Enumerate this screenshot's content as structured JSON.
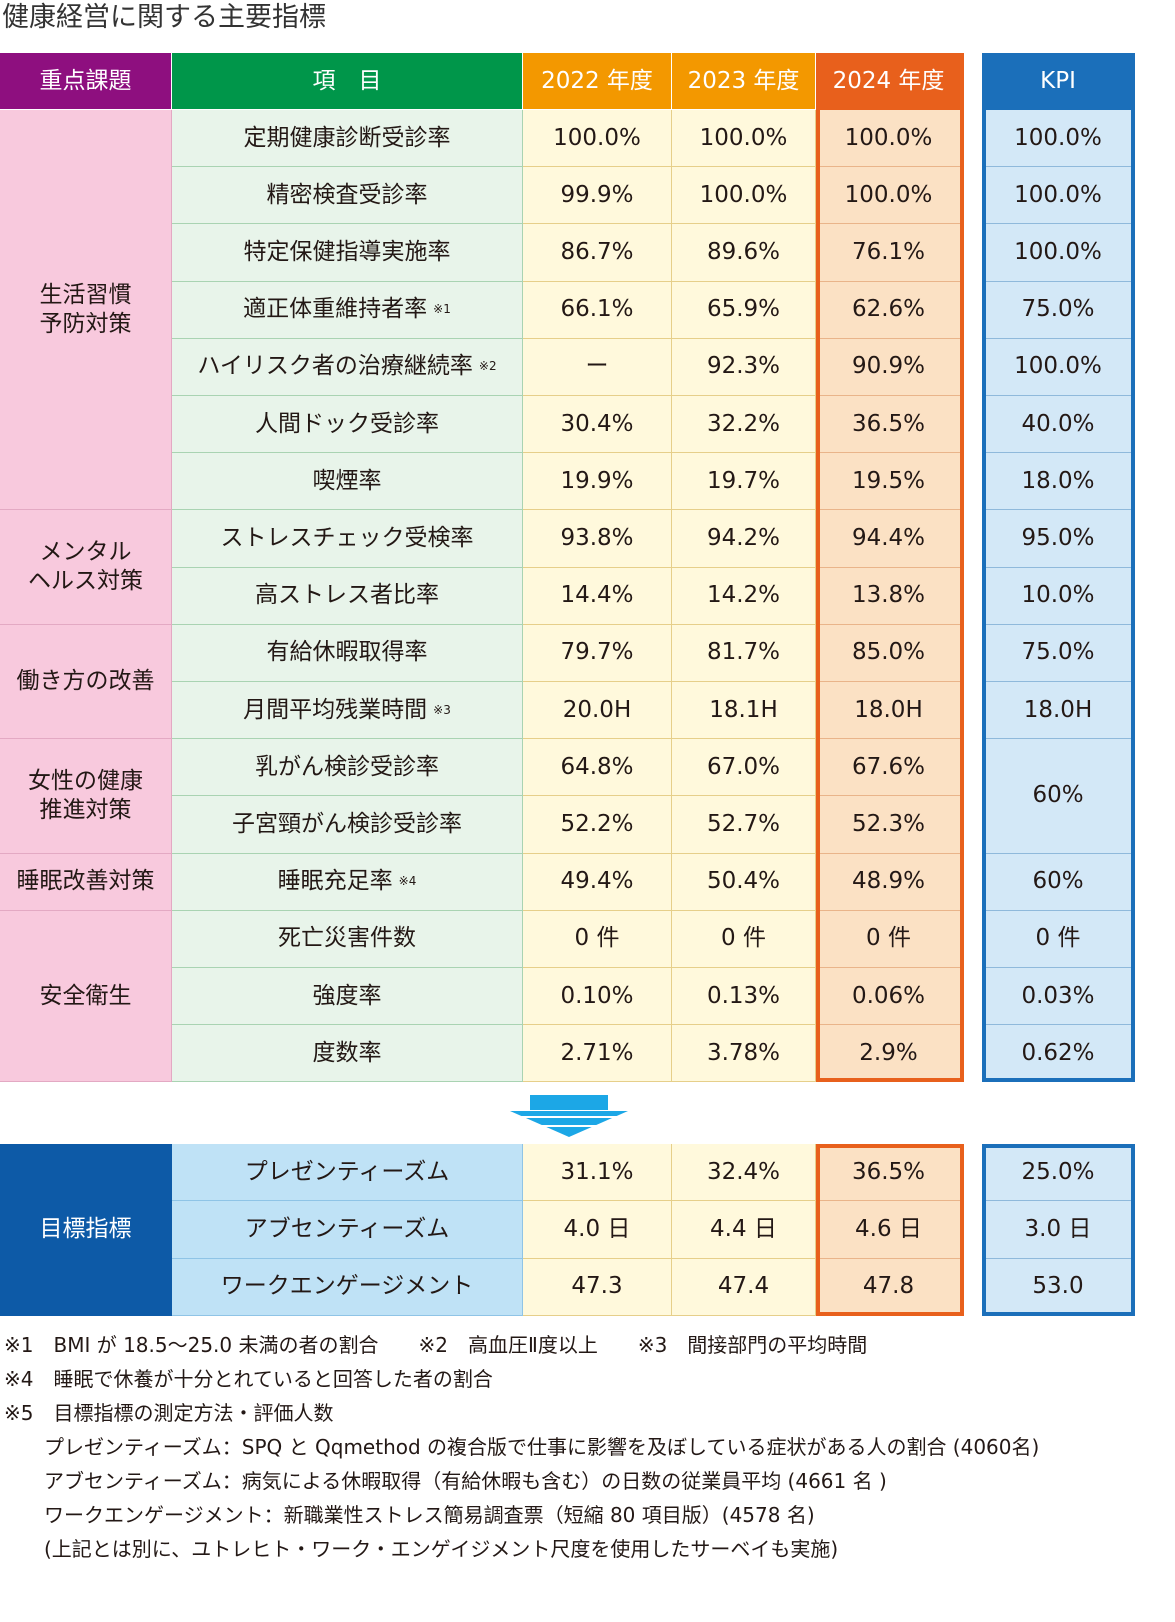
{
  "title": "健康経営に関する主要指標",
  "headers": {
    "category": "重点課題",
    "item": "項　目",
    "y2022": "2022 年度",
    "y2023": "2023 年度",
    "y2024": "2024 年度",
    "kpi": "KPI"
  },
  "categories": [
    {
      "label": "生活習慣\n予防対策",
      "rows": 7
    },
    {
      "label": "メンタル\nヘルス対策",
      "rows": 2
    },
    {
      "label": "働き方の改善",
      "rows": 2
    },
    {
      "label": "女性の健康\n推進対策",
      "rows": 2
    },
    {
      "label": "睡眠改善対策",
      "rows": 1
    },
    {
      "label": "安全衛生",
      "rows": 3
    }
  ],
  "rows": [
    {
      "item": "定期健康診断受診率",
      "note": "",
      "y2022": "100.0%",
      "y2023": "100.0%",
      "y2024": "100.0%",
      "kpi": "100.0%"
    },
    {
      "item": "精密検査受診率",
      "note": "",
      "y2022": "99.9%",
      "y2023": "100.0%",
      "y2024": "100.0%",
      "kpi": "100.0%"
    },
    {
      "item": "特定保健指導実施率",
      "note": "",
      "y2022": "86.7%",
      "y2023": "89.6%",
      "y2024": "76.1%",
      "kpi": "100.0%"
    },
    {
      "item": "適正体重維持者率",
      "note": "※1",
      "y2022": "66.1%",
      "y2023": "65.9%",
      "y2024": "62.6%",
      "kpi": "75.0%"
    },
    {
      "item": "ハイリスク者の治療継続率",
      "note": "※2",
      "y2022": "ー",
      "y2023": "92.3%",
      "y2024": "90.9%",
      "kpi": "100.0%"
    },
    {
      "item": "人間ドック受診率",
      "note": "",
      "y2022": "30.4%",
      "y2023": "32.2%",
      "y2024": "36.5%",
      "kpi": "40.0%"
    },
    {
      "item": "喫煙率",
      "note": "",
      "y2022": "19.9%",
      "y2023": "19.7%",
      "y2024": "19.5%",
      "kpi": "18.0%"
    },
    {
      "item": "ストレスチェック受検率",
      "note": "",
      "y2022": "93.8%",
      "y2023": "94.2%",
      "y2024": "94.4%",
      "kpi": "95.0%"
    },
    {
      "item": "高ストレス者比率",
      "note": "",
      "y2022": "14.4%",
      "y2023": "14.2%",
      "y2024": "13.8%",
      "kpi": "10.0%"
    },
    {
      "item": "有給休暇取得率",
      "note": "",
      "y2022": "79.7%",
      "y2023": "81.7%",
      "y2024": "85.0%",
      "kpi": "75.0%"
    },
    {
      "item": "月間平均残業時間",
      "note": "※3",
      "y2022": "20.0H",
      "y2023": "18.1H",
      "y2024": "18.0H",
      "kpi": "18.0H"
    },
    {
      "item": "乳がん検診受診率",
      "note": "",
      "y2022": "64.8%",
      "y2023": "67.0%",
      "y2024": "67.6%",
      "kpi": "60%",
      "kpiSpan": 2
    },
    {
      "item": "子宮頸がん検診受診率",
      "note": "",
      "y2022": "52.2%",
      "y2023": "52.7%",
      "y2024": "52.3%",
      "kpi": null
    },
    {
      "item": "睡眠充足率",
      "note": "※4",
      "y2022": "49.4%",
      "y2023": "50.4%",
      "y2024": "48.9%",
      "kpi": "60%"
    },
    {
      "item": "死亡災害件数",
      "note": "",
      "y2022": "0 件",
      "y2023": "0 件",
      "y2024": "0 件",
      "kpi": "0 件"
    },
    {
      "item": "強度率",
      "note": "",
      "y2022": "0.10%",
      "y2023": "0.13%",
      "y2024": "0.06%",
      "kpi": "0.03%"
    },
    {
      "item": "度数率",
      "note": "",
      "y2022": "2.71%",
      "y2023": "3.78%",
      "y2024": "2.9%",
      "kpi": "0.62%"
    }
  ],
  "target": {
    "category": "目標指標",
    "rows": [
      {
        "item": "プレゼンティーズム",
        "y2022": "31.1%",
        "y2023": "32.4%",
        "y2024": "36.5%",
        "kpi": "25.0%"
      },
      {
        "item": "アブセンティーズム",
        "y2022": "4.0 日",
        "y2023": "4.4 日",
        "y2024": "4.6 日",
        "kpi": "3.0 日"
      },
      {
        "item": "ワークエンゲージメント",
        "y2022": "47.3",
        "y2023": "47.4",
        "y2024": "47.8",
        "kpi": "53.0"
      }
    ]
  },
  "footnotes": [
    "※1　BMI が 18.5～25.0 未満の者の割合　　※2　高血圧Ⅱ度以上　　※3　間接部門の平均時間",
    "※4　睡眠で休養が十分とれていると回答した者の割合",
    "※5　目標指標の測定方法・評価人数",
    "　　プレゼンティーズム：SPQ と Qqmethod の複合版で仕事に影響を及ぼしている症状がある人の割合 (4060名)",
    "　　アブセンティーズム：病気による休暇取得（有給休暇も含む）の日数の従業員平均 (4661 名 )",
    "　　ワークエンゲージメント：新職業性ストレス簡易調査票（短縮 80 項目版）(4578 名)",
    "　　(上記とは別に、ユトレヒト・ワーク・エンゲイジメント尺度を使用したサーベイも実施)"
  ],
  "colors": {
    "category_header": "#8e0f7f",
    "item_header": "#00964a",
    "y_header": "#f39800",
    "y2024_header": "#e8601c",
    "kpi_header": "#1b6fba",
    "category_cell": "#f8c9dd",
    "item_cell": "#e8f4ea",
    "year_cell": "#fff9dc",
    "y2024_cell": "#fbe1c4",
    "kpi_cell": "#d3e8f7",
    "target_category": "#0d5aa7",
    "target_item": "#bfe2f6"
  }
}
